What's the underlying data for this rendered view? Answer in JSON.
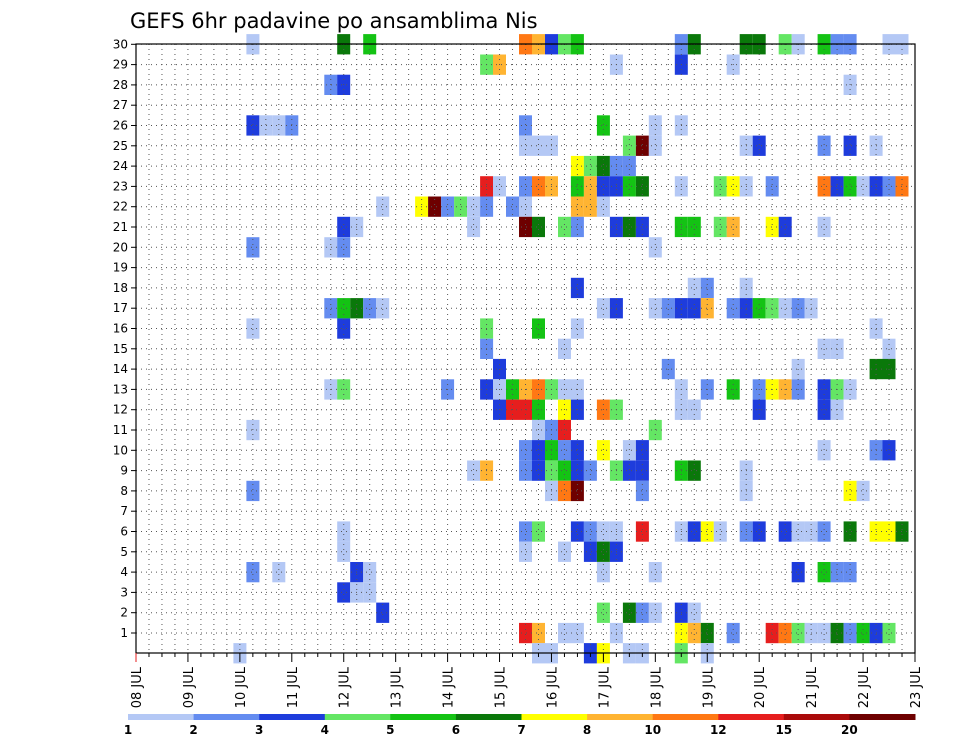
{
  "chart_data": {
    "type": "heatmap",
    "title": "GEFS 6hr padavine po ansamblima Nis",
    "x_axis": {
      "labels": [
        "08 JUL",
        "09 JUL",
        "10 JUL",
        "11 JUL",
        "12 JUL",
        "13 JUL",
        "14 JUL",
        "15 JUL",
        "16 JUL",
        "17 JUL",
        "18 JUL",
        "19 JUL",
        "20 JUL",
        "21 JUL",
        "22 JUL",
        "23 JUL"
      ],
      "step": "6hr"
    },
    "y_axis": {
      "labels": [
        1,
        2,
        3,
        4,
        5,
        6,
        7,
        8,
        9,
        10,
        11,
        12,
        13,
        14,
        15,
        16,
        17,
        18,
        19,
        20,
        21,
        22,
        23,
        24,
        25,
        26,
        27,
        28,
        29,
        30
      ],
      "range": [
        1,
        30
      ]
    },
    "grid": true,
    "legend": {
      "position": "bottom",
      "labels": [
        "1",
        "2",
        "3",
        "4",
        "5",
        "6",
        "7",
        "8",
        "10",
        "12",
        "15",
        "20"
      ],
      "colors": [
        "#b4c8f5",
        "#648cf0",
        "#1e3cdc",
        "#64e664",
        "#14c314",
        "#0a780a",
        "#ffff00",
        "#ffb432",
        "#ff7814",
        "#e61e1e",
        "#aa0a0a",
        "#6e0000"
      ]
    },
    "colors": {
      "c1": "#b4c8f5",
      "c2": "#648cf0",
      "c3": "#1e3cdc",
      "c4": "#64e664",
      "c5": "#14c314",
      "c6": "#0a780a",
      "c7": "#ffff00",
      "c8": "#ffb432",
      "c10": "#ff7814",
      "c12": "#e61e1e",
      "c15": "#aa0a0a",
      "c20": "#6e0000"
    },
    "cells": [
      [
        30,
        10.25,
        1
      ],
      [
        30,
        12.0,
        6
      ],
      [
        30,
        12.5,
        5
      ],
      [
        30,
        15.5,
        10
      ],
      [
        30,
        15.75,
        8
      ],
      [
        30,
        16.0,
        3
      ],
      [
        30,
        16.25,
        4
      ],
      [
        30,
        16.5,
        5
      ],
      [
        30,
        18.5,
        2
      ],
      [
        30,
        18.75,
        6
      ],
      [
        30,
        19.75,
        6
      ],
      [
        30,
        20.0,
        6
      ],
      [
        30,
        20.5,
        4
      ],
      [
        30,
        20.75,
        1
      ],
      [
        30,
        21.25,
        5
      ],
      [
        30,
        21.5,
        2
      ],
      [
        30,
        21.75,
        2
      ],
      [
        30,
        22.5,
        1
      ],
      [
        30,
        22.75,
        1
      ],
      [
        29,
        14.75,
        4
      ],
      [
        29,
        15.0,
        8
      ],
      [
        29,
        17.25,
        1
      ],
      [
        29,
        18.5,
        3
      ],
      [
        29,
        19.5,
        1
      ],
      [
        28,
        11.75,
        2
      ],
      [
        28,
        12.0,
        3
      ],
      [
        28,
        21.75,
        1
      ],
      [
        26,
        10.25,
        3
      ],
      [
        26,
        10.5,
        1
      ],
      [
        26,
        10.75,
        1
      ],
      [
        26,
        11.0,
        2
      ],
      [
        26,
        15.5,
        2
      ],
      [
        26,
        17.0,
        5
      ],
      [
        26,
        18.0,
        1
      ],
      [
        26,
        18.5,
        1
      ],
      [
        25,
        15.5,
        1
      ],
      [
        25,
        15.75,
        1
      ],
      [
        25,
        16.0,
        1
      ],
      [
        25,
        17.5,
        4
      ],
      [
        25,
        17.75,
        20
      ],
      [
        25,
        18.0,
        1
      ],
      [
        25,
        19.75,
        1
      ],
      [
        25,
        20.0,
        3
      ],
      [
        25,
        21.25,
        2
      ],
      [
        25,
        21.75,
        3
      ],
      [
        25,
        22.25,
        1
      ],
      [
        24,
        16.5,
        7
      ],
      [
        24,
        16.75,
        4
      ],
      [
        24,
        17.0,
        6
      ],
      [
        24,
        17.25,
        2
      ],
      [
        24,
        17.5,
        2
      ],
      [
        23,
        14.75,
        12
      ],
      [
        23,
        15.0,
        1
      ],
      [
        23,
        15.5,
        2
      ],
      [
        23,
        15.75,
        10
      ],
      [
        23,
        16.0,
        8
      ],
      [
        23,
        16.5,
        5
      ],
      [
        23,
        16.75,
        8
      ],
      [
        23,
        17.0,
        3
      ],
      [
        23,
        17.25,
        3
      ],
      [
        23,
        17.5,
        5
      ],
      [
        23,
        17.75,
        6
      ],
      [
        23,
        18.5,
        1
      ],
      [
        23,
        19.25,
        4
      ],
      [
        23,
        19.5,
        7
      ],
      [
        23,
        19.75,
        1
      ],
      [
        23,
        20.25,
        2
      ],
      [
        23,
        21.25,
        10
      ],
      [
        23,
        21.5,
        3
      ],
      [
        23,
        21.75,
        5
      ],
      [
        23,
        22.0,
        1
      ],
      [
        23,
        22.25,
        3
      ],
      [
        23,
        22.5,
        2
      ],
      [
        23,
        22.75,
        10
      ],
      [
        22,
        12.75,
        1
      ],
      [
        22,
        13.5,
        7
      ],
      [
        22,
        13.75,
        20
      ],
      [
        22,
        14.0,
        2
      ],
      [
        22,
        14.25,
        4
      ],
      [
        22,
        14.5,
        1
      ],
      [
        22,
        14.75,
        2
      ],
      [
        22,
        15.25,
        2
      ],
      [
        22,
        15.5,
        1
      ],
      [
        22,
        16.5,
        8
      ],
      [
        22,
        16.75,
        8
      ],
      [
        22,
        17.0,
        1
      ],
      [
        21,
        12.0,
        3
      ],
      [
        21,
        12.25,
        1
      ],
      [
        21,
        14.5,
        1
      ],
      [
        21,
        15.5,
        20
      ],
      [
        21,
        15.75,
        6
      ],
      [
        21,
        16.25,
        4
      ],
      [
        21,
        16.5,
        2
      ],
      [
        21,
        17.25,
        3
      ],
      [
        21,
        17.5,
        6
      ],
      [
        21,
        17.75,
        3
      ],
      [
        21,
        18.5,
        5
      ],
      [
        21,
        18.75,
        5
      ],
      [
        21,
        19.25,
        4
      ],
      [
        21,
        19.5,
        8
      ],
      [
        21,
        20.25,
        7
      ],
      [
        21,
        20.5,
        3
      ],
      [
        21,
        21.25,
        1
      ],
      [
        20,
        10.25,
        2
      ],
      [
        20,
        11.75,
        1
      ],
      [
        20,
        12.0,
        2
      ],
      [
        20,
        18.0,
        1
      ],
      [
        18,
        16.5,
        3
      ],
      [
        18,
        18.75,
        1
      ],
      [
        18,
        19.0,
        2
      ],
      [
        18,
        19.75,
        1
      ],
      [
        17,
        11.75,
        2
      ],
      [
        17,
        12.0,
        5
      ],
      [
        17,
        12.25,
        6
      ],
      [
        17,
        12.5,
        2
      ],
      [
        17,
        12.75,
        1
      ],
      [
        17,
        17.0,
        1
      ],
      [
        17,
        17.25,
        3
      ],
      [
        17,
        18.0,
        1
      ],
      [
        17,
        18.25,
        2
      ],
      [
        17,
        18.5,
        3
      ],
      [
        17,
        18.75,
        3
      ],
      [
        17,
        19.0,
        8
      ],
      [
        17,
        19.5,
        2
      ],
      [
        17,
        19.75,
        3
      ],
      [
        17,
        20.0,
        5
      ],
      [
        17,
        20.25,
        4
      ],
      [
        17,
        20.5,
        1
      ],
      [
        17,
        20.75,
        2
      ],
      [
        17,
        21.0,
        1
      ],
      [
        16,
        10.25,
        1
      ],
      [
        16,
        12.0,
        3
      ],
      [
        16,
        14.75,
        4
      ],
      [
        16,
        15.75,
        5
      ],
      [
        16,
        16.5,
        1
      ],
      [
        16,
        22.25,
        1
      ],
      [
        15,
        14.75,
        2
      ],
      [
        15,
        16.25,
        1
      ],
      [
        15,
        21.25,
        1
      ],
      [
        15,
        21.5,
        1
      ],
      [
        15,
        22.5,
        1
      ],
      [
        14,
        15.0,
        3
      ],
      [
        14,
        18.25,
        2
      ],
      [
        14,
        20.75,
        1
      ],
      [
        14,
        22.25,
        6
      ],
      [
        14,
        22.5,
        6
      ],
      [
        13,
        11.75,
        1
      ],
      [
        13,
        12.0,
        4
      ],
      [
        13,
        14.0,
        2
      ],
      [
        13,
        14.75,
        3
      ],
      [
        13,
        15.0,
        1
      ],
      [
        13,
        15.25,
        5
      ],
      [
        13,
        15.5,
        8
      ],
      [
        13,
        15.75,
        10
      ],
      [
        13,
        16.0,
        4
      ],
      [
        13,
        16.25,
        1
      ],
      [
        13,
        16.5,
        1
      ],
      [
        13,
        18.5,
        1
      ],
      [
        13,
        19.0,
        2
      ],
      [
        13,
        19.5,
        5
      ],
      [
        13,
        20.0,
        2
      ],
      [
        13,
        20.25,
        7
      ],
      [
        13,
        20.5,
        8
      ],
      [
        13,
        20.75,
        2
      ],
      [
        13,
        21.25,
        3
      ],
      [
        13,
        21.5,
        4
      ],
      [
        13,
        21.75,
        1
      ],
      [
        12,
        15.0,
        3
      ],
      [
        12,
        15.25,
        12
      ],
      [
        12,
        15.5,
        12
      ],
      [
        12,
        15.75,
        5
      ],
      [
        12,
        16.25,
        7
      ],
      [
        12,
        16.5,
        3
      ],
      [
        12,
        17.0,
        10
      ],
      [
        12,
        17.25,
        4
      ],
      [
        12,
        18.5,
        1
      ],
      [
        12,
        18.75,
        1
      ],
      [
        12,
        20.0,
        3
      ],
      [
        12,
        21.25,
        3
      ],
      [
        12,
        21.5,
        1
      ],
      [
        11,
        10.25,
        1
      ],
      [
        11,
        15.75,
        1
      ],
      [
        11,
        16.0,
        2
      ],
      [
        11,
        16.25,
        12
      ],
      [
        11,
        18.0,
        4
      ],
      [
        10,
        15.5,
        2
      ],
      [
        10,
        15.75,
        3
      ],
      [
        10,
        16.0,
        5
      ],
      [
        10,
        16.25,
        2
      ],
      [
        10,
        16.5,
        3
      ],
      [
        10,
        17.0,
        7
      ],
      [
        10,
        17.5,
        1
      ],
      [
        10,
        17.75,
        3
      ],
      [
        10,
        21.25,
        1
      ],
      [
        10,
        22.25,
        2
      ],
      [
        10,
        22.5,
        3
      ],
      [
        9,
        14.5,
        1
      ],
      [
        9,
        14.75,
        8
      ],
      [
        9,
        15.5,
        2
      ],
      [
        9,
        15.75,
        3
      ],
      [
        9,
        16.0,
        4
      ],
      [
        9,
        16.25,
        5
      ],
      [
        9,
        16.5,
        3
      ],
      [
        9,
        16.75,
        2
      ],
      [
        9,
        17.25,
        4
      ],
      [
        9,
        17.5,
        3
      ],
      [
        9,
        17.75,
        3
      ],
      [
        9,
        18.5,
        5
      ],
      [
        9,
        18.75,
        6
      ],
      [
        9,
        19.75,
        1
      ],
      [
        8,
        10.25,
        2
      ],
      [
        8,
        16.0,
        1
      ],
      [
        8,
        16.25,
        10
      ],
      [
        8,
        16.5,
        20
      ],
      [
        8,
        17.75,
        2
      ],
      [
        8,
        19.75,
        1
      ],
      [
        8,
        21.75,
        7
      ],
      [
        8,
        22.0,
        1
      ],
      [
        6,
        12.0,
        1
      ],
      [
        6,
        15.5,
        2
      ],
      [
        6,
        15.75,
        4
      ],
      [
        6,
        16.5,
        3
      ],
      [
        6,
        16.75,
        2
      ],
      [
        6,
        17.0,
        1
      ],
      [
        6,
        17.25,
        1
      ],
      [
        6,
        17.75,
        12
      ],
      [
        6,
        18.5,
        1
      ],
      [
        6,
        18.75,
        3
      ],
      [
        6,
        19.0,
        7
      ],
      [
        6,
        19.25,
        1
      ],
      [
        6,
        19.75,
        2
      ],
      [
        6,
        20.0,
        3
      ],
      [
        6,
        20.5,
        3
      ],
      [
        6,
        20.75,
        1
      ],
      [
        6,
        21.0,
        1
      ],
      [
        6,
        21.25,
        2
      ],
      [
        6,
        21.75,
        6
      ],
      [
        6,
        22.25,
        7
      ],
      [
        6,
        22.5,
        7
      ],
      [
        6,
        22.75,
        6
      ],
      [
        5,
        12.0,
        1
      ],
      [
        5,
        15.5,
        1
      ],
      [
        5,
        16.25,
        1
      ],
      [
        5,
        16.75,
        3
      ],
      [
        5,
        17.0,
        6
      ],
      [
        5,
        17.25,
        3
      ],
      [
        4,
        10.25,
        2
      ],
      [
        4,
        10.75,
        1
      ],
      [
        4,
        12.25,
        3
      ],
      [
        4,
        12.5,
        1
      ],
      [
        4,
        17.0,
        1
      ],
      [
        4,
        18.0,
        1
      ],
      [
        4,
        20.75,
        3
      ],
      [
        4,
        21.25,
        5
      ],
      [
        4,
        21.5,
        2
      ],
      [
        4,
        21.75,
        2
      ],
      [
        3,
        12.0,
        3
      ],
      [
        3,
        12.25,
        1
      ],
      [
        3,
        12.5,
        1
      ],
      [
        2,
        12.75,
        3
      ],
      [
        2,
        17.0,
        4
      ],
      [
        2,
        17.5,
        6
      ],
      [
        2,
        17.75,
        2
      ],
      [
        2,
        18.0,
        1
      ],
      [
        2,
        18.5,
        3
      ],
      [
        2,
        18.75,
        1
      ],
      [
        1,
        15.5,
        12
      ],
      [
        1,
        15.75,
        8
      ],
      [
        1,
        16.25,
        1
      ],
      [
        1,
        16.5,
        1
      ],
      [
        1,
        17.25,
        1
      ],
      [
        1,
        18.5,
        7
      ],
      [
        1,
        18.75,
        8
      ],
      [
        1,
        19.0,
        6
      ],
      [
        1,
        19.5,
        2
      ],
      [
        1,
        20.25,
        12
      ],
      [
        1,
        20.5,
        10
      ],
      [
        1,
        20.75,
        4
      ],
      [
        1,
        21.0,
        1
      ],
      [
        1,
        21.25,
        1
      ],
      [
        1,
        21.5,
        6
      ],
      [
        1,
        21.75,
        2
      ],
      [
        1,
        22.0,
        5
      ],
      [
        1,
        22.25,
        3
      ],
      [
        1,
        22.5,
        4
      ],
      [
        0,
        10.0,
        1
      ],
      [
        0,
        15.75,
        1
      ],
      [
        0,
        16.0,
        1
      ],
      [
        0,
        16.75,
        3
      ],
      [
        0,
        17.0,
        7
      ],
      [
        0,
        17.5,
        1
      ],
      [
        0,
        17.75,
        1
      ],
      [
        0,
        18.5,
        4
      ],
      [
        0,
        19.0,
        1
      ]
    ]
  }
}
